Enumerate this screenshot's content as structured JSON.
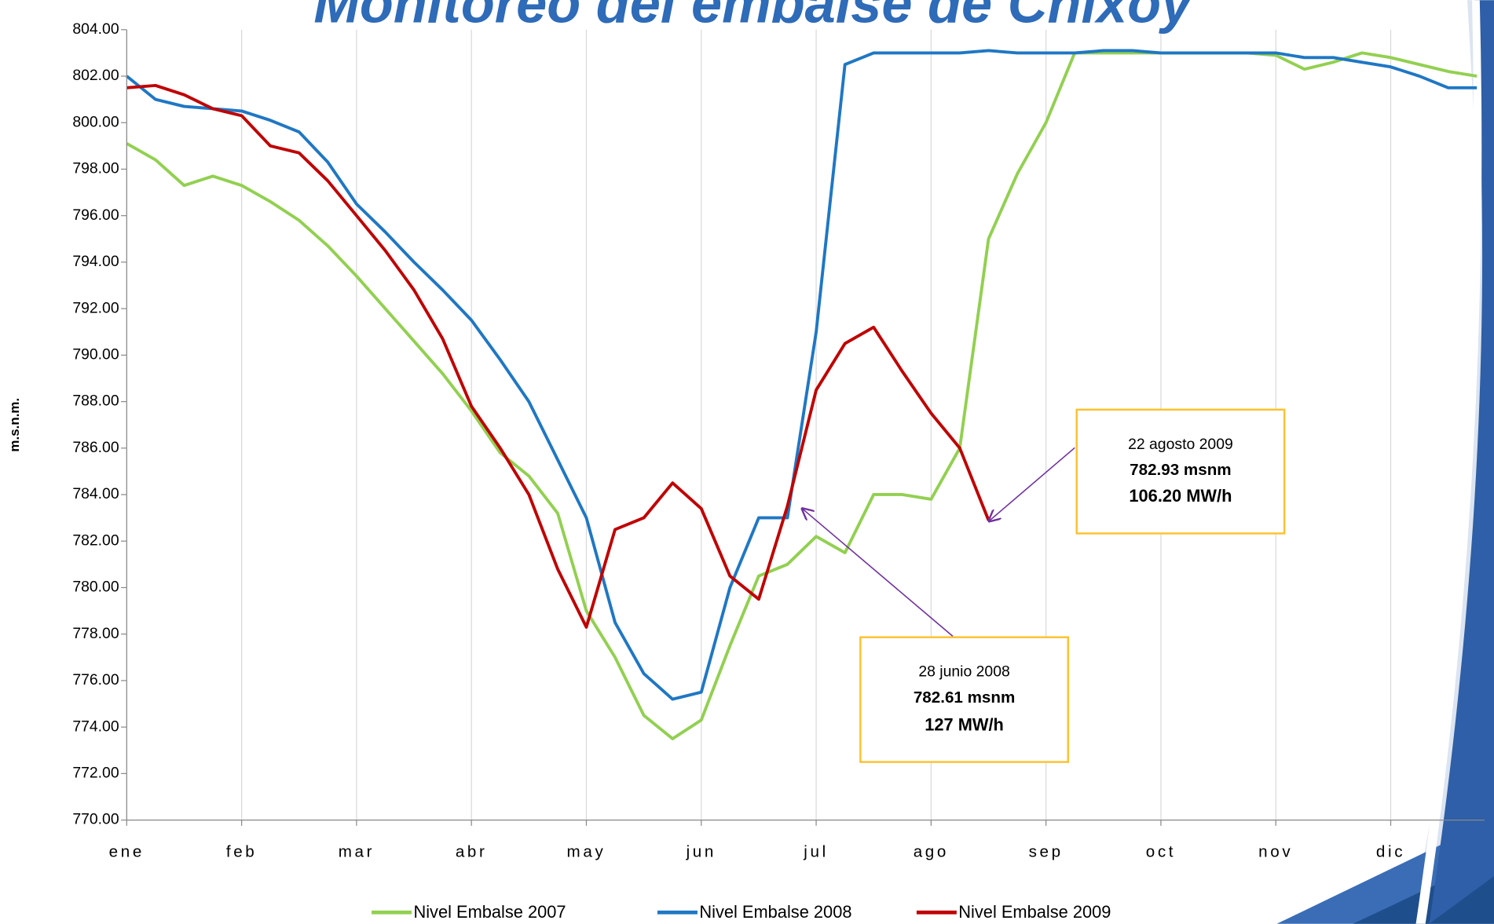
{
  "chart_data": {
    "type": "line",
    "title": "Monitoreo del embalse de Chixoy",
    "ylabel": "m.s.n.m.",
    "categories": [
      "ene",
      null,
      null,
      null,
      "feb",
      null,
      null,
      null,
      "mar",
      null,
      null,
      null,
      "abr",
      null,
      null,
      null,
      "may",
      null,
      null,
      null,
      "jun",
      null,
      null,
      null,
      "jul",
      null,
      null,
      null,
      "ago",
      null,
      null,
      null,
      "sep",
      null,
      null,
      null,
      "oct",
      null,
      null,
      null,
      "nov",
      null,
      null,
      null,
      "dic",
      null,
      null,
      null
    ],
    "series": [
      {
        "name": "Nivel Embalse 2007",
        "color": "#92d050",
        "values": [
          799.1,
          798.4,
          797.3,
          797.7,
          797.3,
          796.6,
          795.8,
          794.7,
          793.4,
          792.0,
          790.6,
          789.2,
          787.6,
          785.8,
          784.8,
          783.2,
          779.0,
          777.0,
          774.5,
          773.5,
          774.3,
          777.5,
          780.5,
          781.0,
          782.2,
          781.5,
          784.0,
          784.0,
          783.8,
          786.0,
          795.0,
          797.8,
          800.0,
          803.0,
          803.0,
          803.0,
          803.0,
          803.0,
          803.0,
          803.0,
          802.9,
          802.3,
          802.6,
          803.0,
          802.8,
          802.5,
          802.2,
          802.0
        ]
      },
      {
        "name": "Nivel Embalse 2008",
        "color": "#1f77c4",
        "values": [
          802.0,
          801.0,
          800.7,
          800.6,
          800.5,
          800.1,
          799.6,
          798.3,
          796.5,
          795.3,
          794.0,
          792.8,
          791.5,
          789.8,
          788.0,
          785.5,
          783.0,
          778.5,
          776.3,
          775.2,
          775.5,
          780.0,
          783.0,
          783.0,
          791.0,
          802.5,
          803.0,
          803.0,
          803.0,
          803.0,
          803.1,
          803.0,
          803.0,
          803.0,
          803.1,
          803.1,
          803.0,
          803.0,
          803.0,
          803.0,
          803.0,
          802.8,
          802.8,
          802.6,
          802.4,
          802.0,
          801.5,
          801.5
        ]
      },
      {
        "name": "Nivel Embalse 2009",
        "color": "#c00000",
        "values": [
          801.5,
          801.6,
          801.2,
          800.6,
          800.3,
          799.0,
          798.7,
          797.5,
          796.0,
          794.5,
          792.8,
          790.7,
          787.8,
          786.0,
          784.0,
          780.8,
          778.3,
          782.5,
          783.0,
          784.5,
          783.4,
          780.5,
          779.5,
          783.5,
          788.5,
          790.5,
          791.2,
          789.3,
          787.5,
          786.0,
          782.9,
          null,
          null,
          null,
          null,
          null,
          null,
          null,
          null,
          null,
          null,
          null,
          null,
          null,
          null,
          null,
          null,
          null
        ]
      }
    ],
    "ylim": [
      770,
      804
    ],
    "yticks": [
      {
        "value": 770,
        "label": "770.00"
      },
      {
        "value": 772,
        "label": "772.00"
      },
      {
        "value": 774,
        "label": "774.00"
      },
      {
        "value": 776,
        "label": "776.00"
      },
      {
        "value": 778,
        "label": "778.00"
      },
      {
        "value": 780,
        "label": "780.00"
      },
      {
        "value": 782,
        "label": "782.00"
      },
      {
        "value": 784,
        "label": "784.00"
      },
      {
        "value": 786,
        "label": "786.00"
      },
      {
        "value": 788,
        "label": "788.00"
      },
      {
        "value": 790,
        "label": "790.00"
      },
      {
        "value": 792,
        "label": "792.00"
      },
      {
        "value": 794,
        "label": "794.00"
      },
      {
        "value": 796,
        "label": "796.00"
      },
      {
        "value": 798,
        "label": "798.00"
      },
      {
        "value": 800,
        "label": "800.00"
      },
      {
        "value": 802,
        "label": "802.00"
      },
      {
        "value": 804,
        "label": "804.00"
      }
    ],
    "grid": true,
    "annotations": [
      {
        "lines": [
          "22 agosto 2009",
          "782.93 msnm",
          "106.20 MW/h"
        ]
      },
      {
        "lines": [
          "28 junio 2008",
          "782.61 msnm",
          "127 MW/h"
        ]
      }
    ]
  }
}
